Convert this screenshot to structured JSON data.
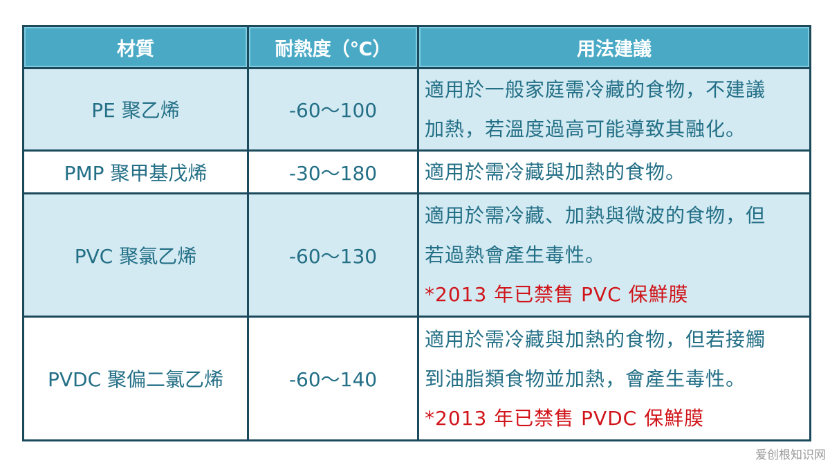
{
  "headers": [
    "材質",
    "耐熱度（℃）",
    "用法建議"
  ],
  "rows": [
    {
      "material": "PE 聚乙烯",
      "temp": "-60～100",
      "usage": [
        "適用於一般家庭需冷藏的食物，不建議",
        "加熱，若溫度過高可能導致其融化。"
      ],
      "note": ""
    },
    {
      "material": "PMP 聚甲基戊烯",
      "temp": "-30～180",
      "usage": [
        "適用於需冷藏與加熱的食物。"
      ],
      "note": ""
    },
    {
      "material": "PVC 聚氯乙烯",
      "temp": "-60～130",
      "usage": [
        "適用於需冷藏、加熱與微波的食物，但",
        "若過熱會產生毒性。"
      ],
      "note": "*2013 年已禁售 PVC 保鮮膜"
    },
    {
      "material": "PVDC 聚偏二氯乙烯",
      "temp": "-60～140",
      "usage": [
        "適用於需冷藏與加熱的食物，但若接觸",
        "到油脂類食物並加熱，會產生毒性。"
      ],
      "note": "*2013 年已禁售 PVDC 保鮮膜"
    }
  ],
  "watermark": "爱创根知识网",
  "colors": {
    "header": "#4aaac6",
    "border": "#1b4a5c",
    "shade": "#d3eaf2",
    "text": "#236f86",
    "note": "#d0141a"
  }
}
